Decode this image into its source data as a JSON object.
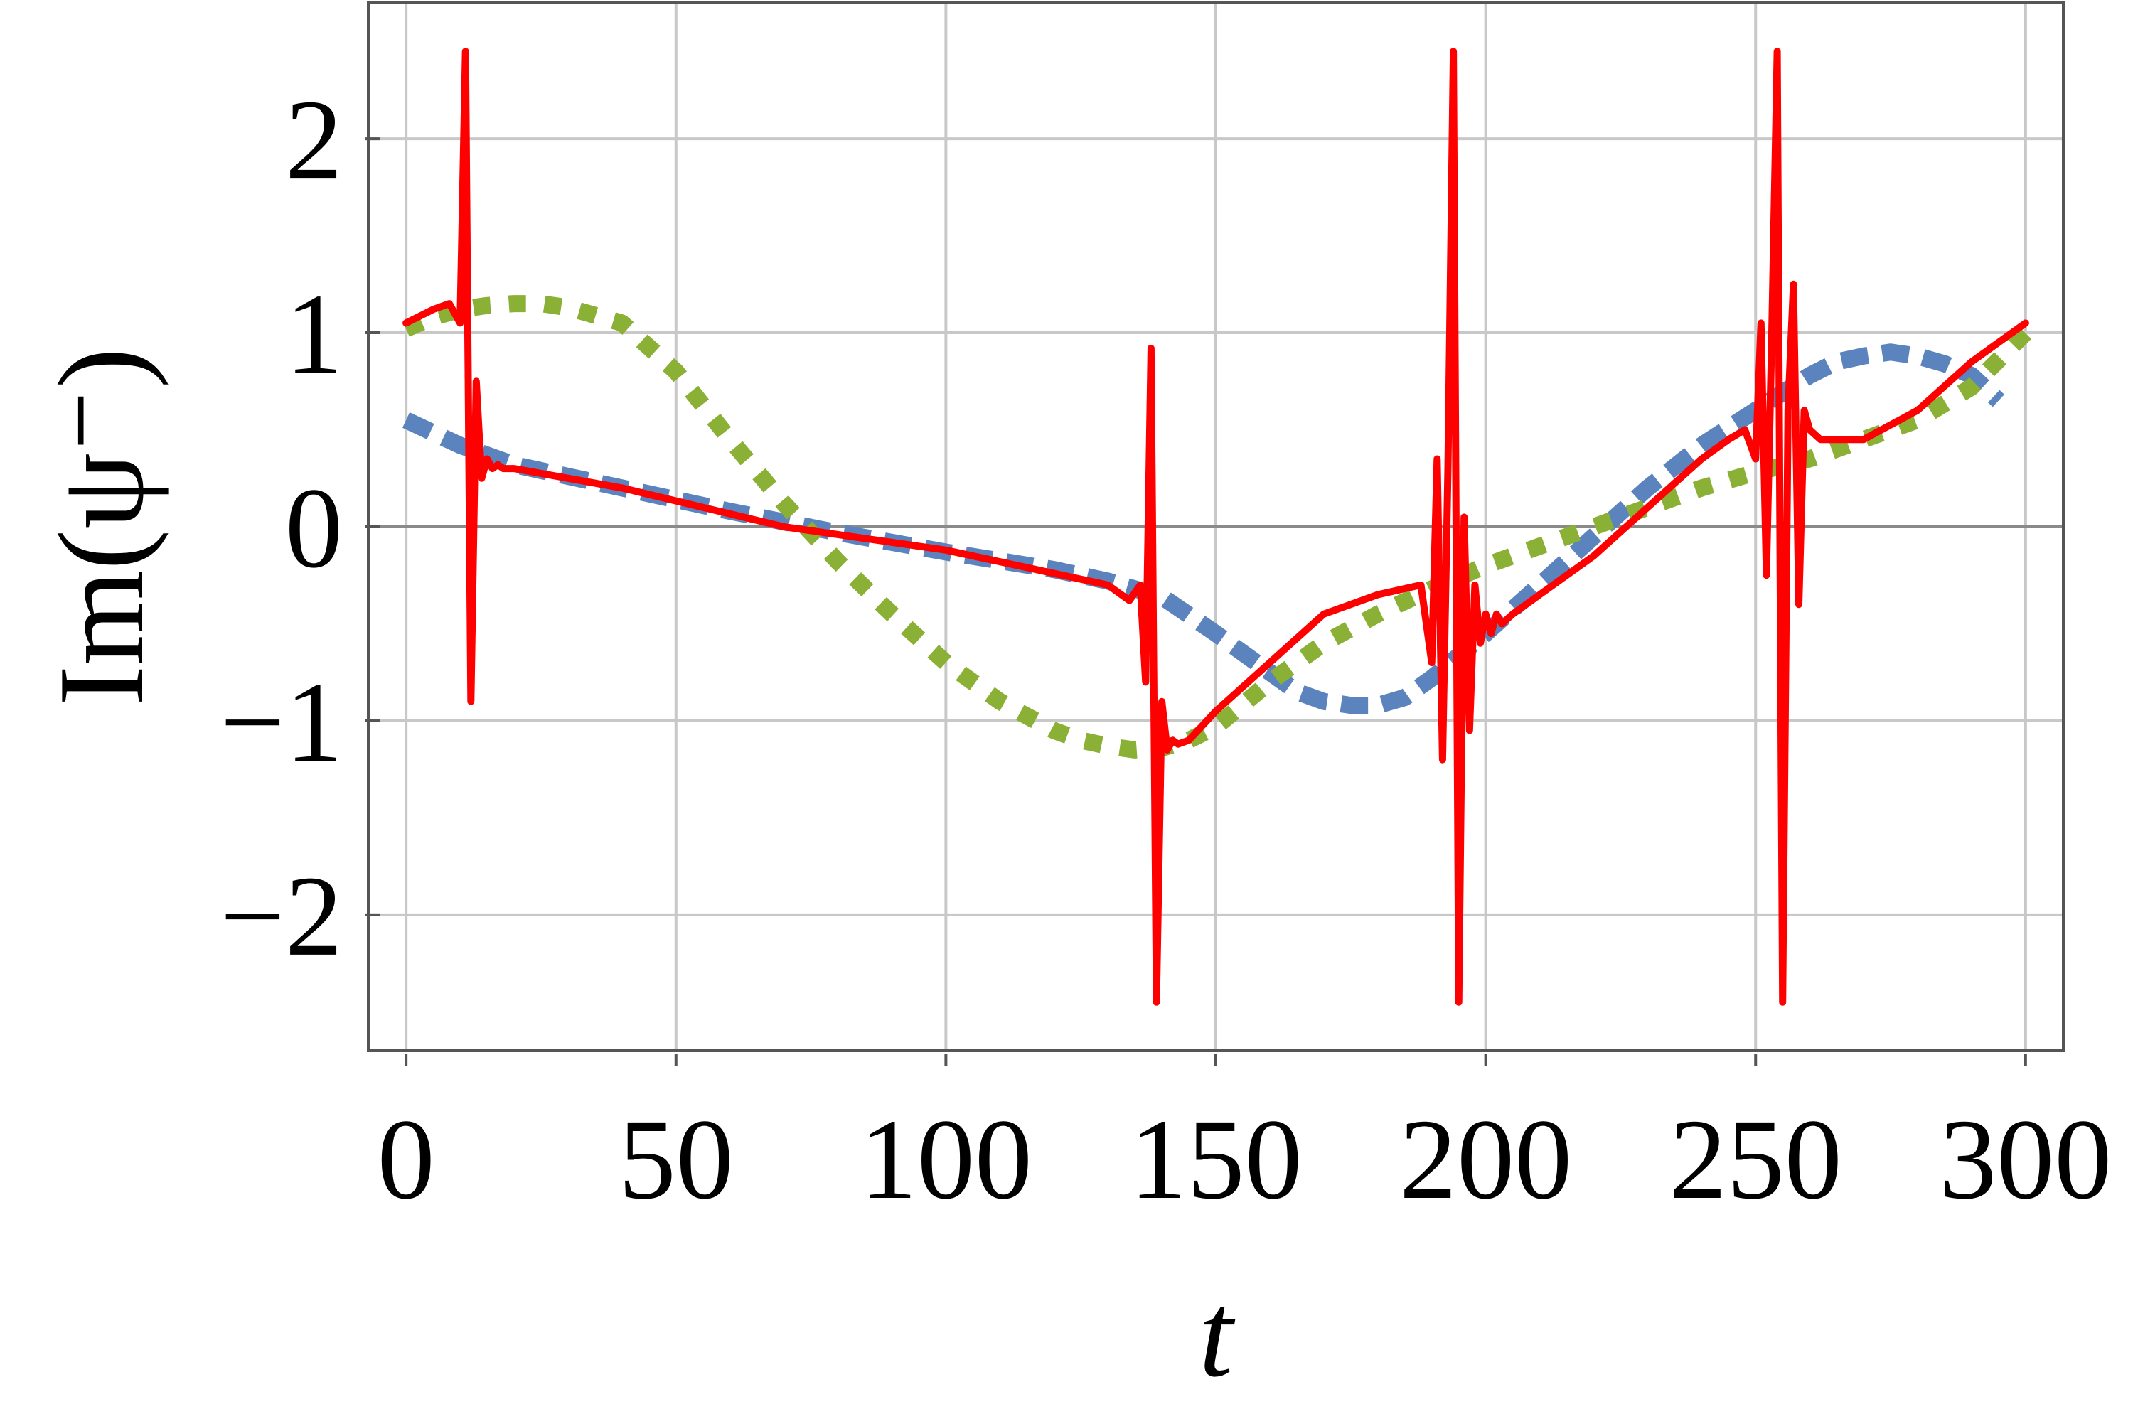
{
  "chart_data": {
    "type": "line",
    "title": "",
    "xlabel": "t",
    "ylabel": "Im(ψ⁻)",
    "xlim": [
      -7,
      307
    ],
    "ylim": [
      -2.7,
      2.7
    ],
    "xticks": [
      0,
      50,
      100,
      150,
      200,
      250,
      300
    ],
    "xtick_labels": [
      "0",
      "50",
      "100",
      "150",
      "200",
      "250",
      "300"
    ],
    "yticks": [
      -2,
      -1,
      0,
      1,
      2
    ],
    "ytick_labels": [
      "−2",
      "−1",
      "0",
      "1",
      "2"
    ],
    "grid": true,
    "legend": "none",
    "series": [
      {
        "style": "solid",
        "color": "#ff0000",
        "x": [
          0,
          5,
          8,
          10,
          11,
          12,
          13,
          14,
          15,
          16,
          17,
          18,
          20,
          40,
          70,
          100,
          130,
          134,
          136,
          137,
          138,
          139,
          140,
          141,
          142,
          143,
          145,
          150,
          160,
          170,
          180,
          188,
          190,
          191,
          192,
          193,
          194,
          195,
          196,
          197,
          198,
          199,
          200,
          201,
          202,
          203,
          205,
          210,
          220,
          230,
          240,
          245,
          248,
          250,
          251,
          252,
          253,
          254,
          255,
          256,
          257,
          258,
          259,
          260,
          262,
          265,
          270,
          280,
          290,
          300
        ],
        "y": [
          1.05,
          1.12,
          1.15,
          1.05,
          2.45,
          -0.9,
          0.75,
          0.25,
          0.35,
          0.3,
          0.32,
          0.3,
          0.3,
          0.2,
          0.0,
          -0.12,
          -0.3,
          -0.38,
          -0.3,
          -0.8,
          0.92,
          -2.45,
          -0.9,
          -1.15,
          -1.1,
          -1.12,
          -1.1,
          -0.95,
          -0.7,
          -0.45,
          -0.35,
          -0.3,
          -0.7,
          0.35,
          -1.2,
          0.3,
          2.45,
          -2.45,
          0.05,
          -1.05,
          -0.3,
          -0.6,
          -0.45,
          -0.55,
          -0.45,
          -0.5,
          -0.45,
          -0.35,
          -0.15,
          0.1,
          0.35,
          0.45,
          0.5,
          0.35,
          1.05,
          -0.25,
          1.0,
          2.45,
          -2.45,
          0.6,
          1.25,
          -0.4,
          0.6,
          0.5,
          0.45,
          0.45,
          0.45,
          0.6,
          0.85,
          1.05
        ]
      },
      {
        "style": "dashed",
        "color": "#5b83bd",
        "x": [
          0,
          10,
          20,
          40,
          60,
          80,
          100,
          120,
          130,
          140,
          150,
          160,
          165,
          170,
          175,
          180,
          185,
          190,
          200,
          210,
          220,
          230,
          240,
          250,
          260,
          265,
          270,
          275,
          280,
          285,
          290,
          295
        ],
        "y": [
          0.55,
          0.42,
          0.32,
          0.2,
          0.08,
          -0.03,
          -0.13,
          -0.22,
          -0.28,
          -0.36,
          -0.55,
          -0.75,
          -0.85,
          -0.9,
          -0.92,
          -0.92,
          -0.88,
          -0.78,
          -0.55,
          -0.3,
          -0.05,
          0.2,
          0.42,
          0.6,
          0.78,
          0.85,
          0.88,
          0.9,
          0.88,
          0.84,
          0.78,
          0.65
        ]
      },
      {
        "style": "dotted",
        "color": "#8ab035",
        "x": [
          0,
          5,
          10,
          15,
          20,
          25,
          30,
          40,
          50,
          60,
          70,
          80,
          90,
          100,
          110,
          120,
          125,
          130,
          135,
          140,
          145,
          150,
          160,
          170,
          180,
          190,
          200,
          210,
          220,
          230,
          240,
          250,
          260,
          270,
          280,
          290,
          300
        ],
        "y": [
          1.02,
          1.08,
          1.12,
          1.14,
          1.15,
          1.15,
          1.13,
          1.05,
          0.8,
          0.45,
          0.12,
          -0.18,
          -0.45,
          -0.7,
          -0.9,
          -1.05,
          -1.1,
          -1.13,
          -1.15,
          -1.14,
          -1.1,
          -1.03,
          -0.8,
          -0.6,
          -0.45,
          -0.32,
          -0.2,
          -0.1,
          0.0,
          0.1,
          0.2,
          0.28,
          0.35,
          0.45,
          0.55,
          0.72,
          1.0
        ]
      }
    ]
  }
}
